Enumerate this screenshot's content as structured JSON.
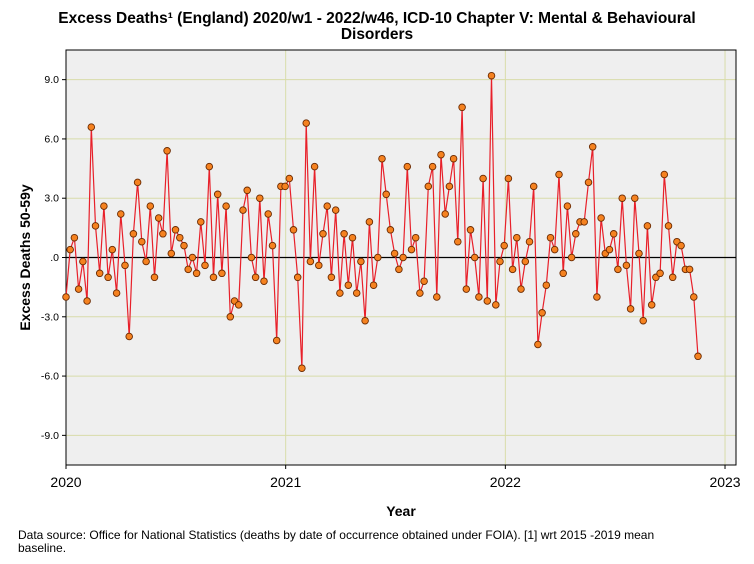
{
  "chart_data": {
    "type": "line",
    "title_line1": "Excess Deaths¹ (England) 2020/w1 - 2022/w46, ICD-10 Chapter V: Mental & Behavioural",
    "title_line2": "Disorders",
    "xlabel": "Year",
    "ylabel": "Excess Deaths 50-59y",
    "xlim": [
      2020.0,
      2023.05
    ],
    "ylim": [
      -10.5,
      10.5
    ],
    "yticks": [
      -9.0,
      -6.0,
      -3.0,
      0.0,
      3.0,
      6.0,
      9.0
    ],
    "ytick_labels": [
      "-9.0",
      "-6.0",
      "-3.0",
      ".0",
      "3.0",
      "6.0",
      "9.0"
    ],
    "xticks": [
      2020,
      2021,
      2022,
      2023
    ],
    "xtick_labels": [
      "2020",
      "2021",
      "2022",
      "2023"
    ],
    "grid": true,
    "reference_line": 0,
    "colors": {
      "line": "#e8202a",
      "marker_fill": "#f58220",
      "marker_edge": "#6b2a00",
      "plot_bg": "#efefef",
      "grid": "#d8dcaa"
    },
    "series": [
      {
        "name": "Excess deaths 50-59y",
        "x_start": 2020.0,
        "x_step": 0.01918,
        "values": [
          -2.0,
          0.4,
          1.0,
          -1.6,
          -0.2,
          -2.2,
          6.6,
          1.6,
          -0.8,
          2.6,
          -1.0,
          0.4,
          -1.8,
          2.2,
          -0.4,
          -4.0,
          1.2,
          3.8,
          0.8,
          -0.2,
          2.6,
          -1.0,
          2.0,
          1.2,
          5.4,
          0.2,
          1.4,
          1.0,
          0.6,
          -0.6,
          0.0,
          -0.8,
          1.8,
          -0.4,
          4.6,
          -1.0,
          3.2,
          -0.8,
          2.6,
          -3.0,
          -2.2,
          -2.4,
          2.4,
          3.4,
          0.0,
          -1.0,
          3.0,
          -1.2,
          2.2,
          0.6,
          -4.2,
          3.6,
          3.6,
          4.0,
          1.4,
          -1.0,
          -5.6,
          6.8,
          -0.2,
          4.6,
          -0.4,
          1.2,
          2.6,
          -1.0,
          2.4,
          -1.8,
          1.2,
          -1.4,
          1.0,
          -1.8,
          -0.2,
          -3.2,
          1.8,
          -1.4,
          0.0,
          5.0,
          3.2,
          1.4,
          0.2,
          -0.6,
          0.0,
          4.6,
          0.4,
          1.0,
          -1.8,
          -1.2,
          3.6,
          4.6,
          -2.0,
          5.2,
          2.2,
          3.6,
          5.0,
          0.8,
          7.6,
          -1.6,
          1.4,
          0.0,
          -2.0,
          4.0,
          -2.2,
          9.2,
          -2.4,
          -0.2,
          0.6,
          4.0,
          -0.6,
          1.0,
          -1.6,
          -0.2,
          0.8,
          3.6,
          -4.4,
          -2.8,
          -1.4,
          1.0,
          0.4,
          4.2,
          -0.8,
          2.6,
          0.0,
          1.2,
          1.8,
          1.8,
          3.8,
          5.6,
          -2.0,
          2.0,
          0.2,
          0.4,
          1.2,
          -0.6,
          3.0,
          -0.4,
          -2.6,
          3.0,
          0.2,
          -3.2,
          1.6,
          -2.4,
          -1.0,
          -0.8,
          4.2,
          1.6,
          -1.0,
          0.8,
          0.6,
          -0.6,
          -0.6,
          -2.0,
          -5.0
        ]
      }
    ],
    "footnote_line1": "Data source: Office for National Statistics (deaths by date of occurrence obtained under FOIA). [1] wrt 2015 -2019 mean",
    "footnote_line2": "baseline."
  }
}
